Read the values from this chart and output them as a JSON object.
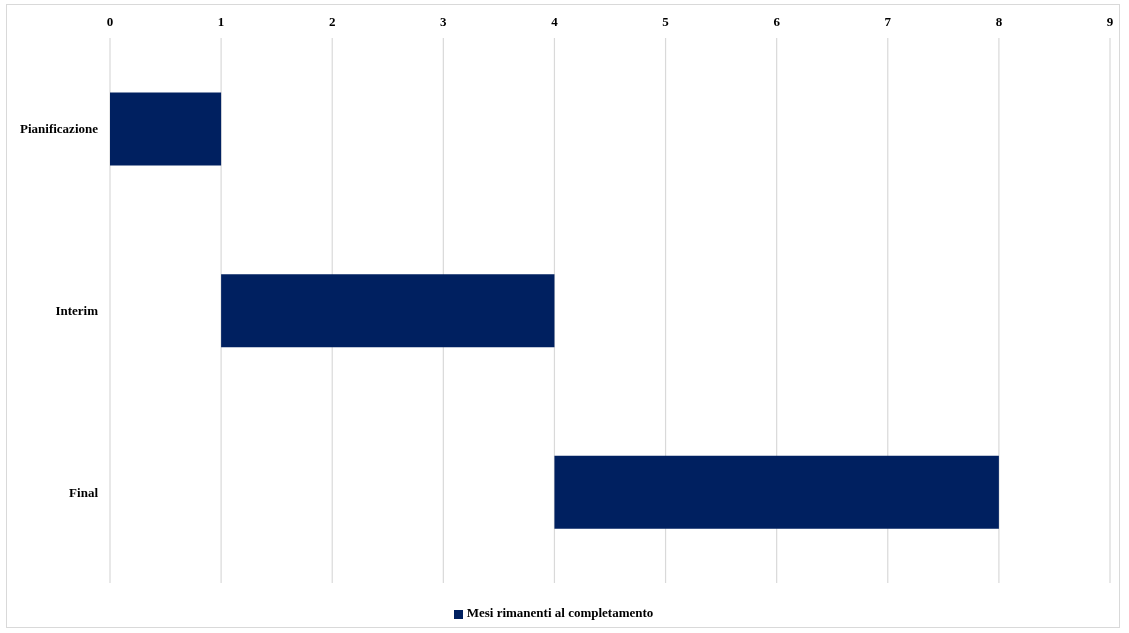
{
  "chart_data": {
    "type": "bar",
    "orientation": "horizontal",
    "categories": [
      "Pianificazione",
      "Interim",
      "Final"
    ],
    "series": [
      {
        "name": "Mesi rimanenti al completamento",
        "color": "#002060",
        "values": [
          1,
          3,
          4
        ],
        "base": [
          0,
          1,
          4
        ]
      }
    ],
    "xlim": [
      0,
      9
    ],
    "xticks": [
      0,
      1,
      2,
      3,
      4,
      5,
      6,
      7,
      8,
      9
    ],
    "grid": "x",
    "legend": "bottom"
  }
}
